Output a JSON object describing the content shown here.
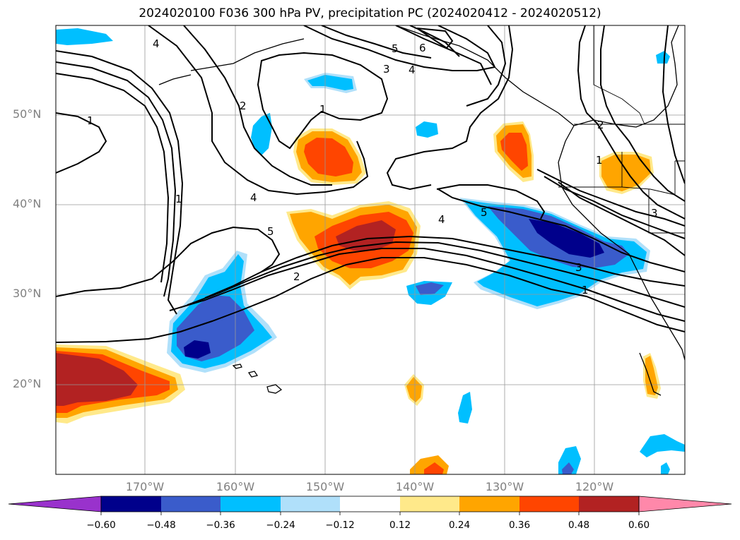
{
  "title": "2024020100 F036 300 hPa PV, precipitation PC (2024020412 - 2024020512)",
  "lat_labels": [
    "50°N",
    "40°N",
    "30°N",
    "20°N"
  ],
  "lon_labels": [
    "170°W",
    "160°W",
    "150°W",
    "140°W",
    "130°W",
    "120°W"
  ],
  "colorbar": {
    "ticks": [
      "−0.60",
      "−0.48",
      "−0.36",
      "−0.24",
      "−0.12",
      "0.12",
      "0.24",
      "0.36",
      "0.48",
      "0.60"
    ],
    "colors": [
      "#9932cc",
      "#00008b",
      "#3a5ccb",
      "#00bfff",
      "#b0e0fa",
      "#ffffff",
      "#ffe98a",
      "#ffa500",
      "#ff4500",
      "#b22222",
      "#ff88aa"
    ]
  },
  "contour_labels": [
    "4",
    "5",
    "6",
    "3",
    "4",
    "2",
    "1",
    "1",
    "1",
    "4",
    "5",
    "4",
    "5",
    "2",
    "3",
    "1",
    "3",
    "2",
    "1"
  ],
  "map": {
    "lon_range": [
      -180,
      -110
    ],
    "lat_range": [
      10,
      60
    ],
    "gridlines": true
  }
}
